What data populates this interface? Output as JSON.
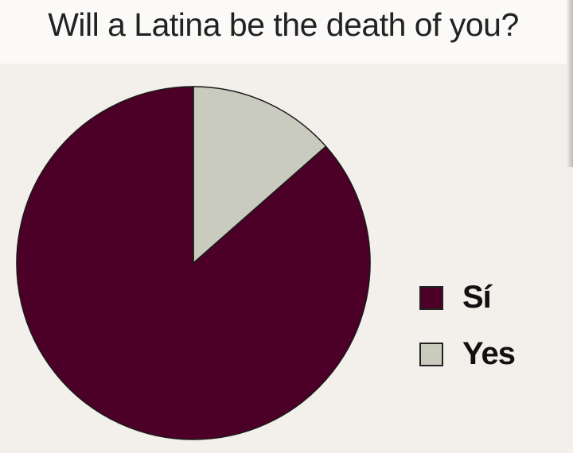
{
  "chart_data": {
    "type": "pie",
    "title": "Will a Latina be the death of you?",
    "slices": [
      {
        "label": "Yes",
        "value": 13.5,
        "color": "#c9cbbf"
      },
      {
        "label": "Sí",
        "value": 86.5,
        "color": "#4d0027"
      }
    ],
    "start_angle_deg": 0,
    "direction": "clockwise",
    "legend": {
      "placement": "right",
      "items": [
        "Sí",
        "Yes"
      ]
    }
  },
  "colors": {
    "background": "#f3efea",
    "title_band": "#fbfaf8"
  }
}
